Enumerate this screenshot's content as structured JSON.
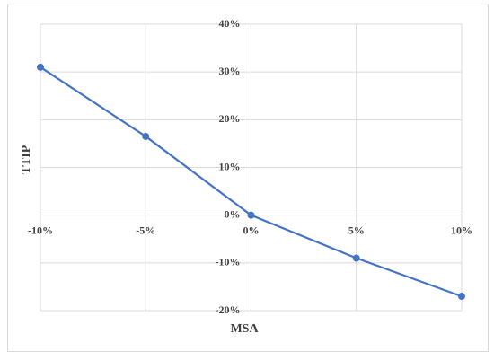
{
  "chart_data": {
    "type": "line",
    "x_label": "MSA",
    "y_label": "TTIP",
    "x": [
      -10,
      -5,
      0,
      5,
      10
    ],
    "series": [
      {
        "color": "#4472c4",
        "values": [
          31,
          16.5,
          0,
          -9,
          -17
        ]
      }
    ],
    "xlim": [
      -10,
      10
    ],
    "xticks": [
      {
        "value": -10,
        "label": "-10%"
      },
      {
        "value": -5,
        "label": "-5%"
      },
      {
        "value": 0,
        "label": "0%"
      },
      {
        "value": 5,
        "label": "5%"
      },
      {
        "value": 10,
        "label": "10%"
      }
    ],
    "ylim": [
      -20,
      40
    ],
    "yticks": [
      {
        "value": -20,
        "label": "-20%"
      },
      {
        "value": -10,
        "label": "-10%"
      },
      {
        "value": 0,
        "label": "0%"
      },
      {
        "value": 10,
        "label": "10%"
      },
      {
        "value": 20,
        "label": "20%"
      },
      {
        "value": 30,
        "label": "30%"
      },
      {
        "value": 40,
        "label": "40%"
      }
    ],
    "grid": true
  }
}
